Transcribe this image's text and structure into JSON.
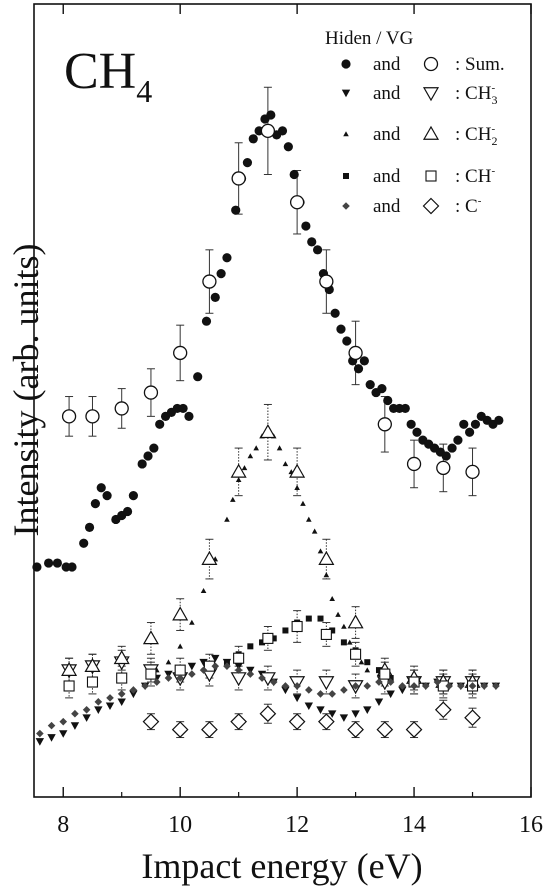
{
  "chart_data": {
    "type": "scatter",
    "title": "CH4",
    "title_main": "CH",
    "title_sub": "4",
    "xlabel": "Impact energy (eV)",
    "ylabel": "Intensity (arb. units)",
    "xlim": [
      7.5,
      16
    ],
    "ylim": [
      0,
      100
    ],
    "y_unit_note": "arbitrary units, no y tick labels",
    "x_ticks": [
      8,
      10,
      12,
      14,
      16
    ],
    "x_tick_labels": [
      "8",
      "10",
      "12",
      "14",
      "16"
    ],
    "legend": {
      "header": "Hiden / VG",
      "placement": "top-right",
      "entries": [
        {
          "and": "and",
          "label": ": Sum.",
          "ion": "Sum.",
          "sup": "",
          "sub": ""
        },
        {
          "and": "and",
          "label": ": CH3-",
          "ion": "CH",
          "sub": "3",
          "sup": "-"
        },
        {
          "and": "and",
          "label": ": CH2-",
          "ion": "CH",
          "sub": "2",
          "sup": "-"
        },
        {
          "and": "and",
          "label": ": CH-",
          "ion": "CH",
          "sub": "",
          "sup": "-"
        },
        {
          "and": "and",
          "label": ": C-",
          "ion": "C",
          "sub": "",
          "sup": "-"
        }
      ]
    },
    "series": [
      {
        "name": "Hiden Sum.",
        "marker": "filled-circle",
        "points": [
          [
            7.55,
            29
          ],
          [
            7.75,
            29.5
          ],
          [
            7.9,
            29.5
          ],
          [
            8.05,
            29
          ],
          [
            8.15,
            29
          ],
          [
            8.35,
            32
          ],
          [
            8.45,
            34
          ],
          [
            8.55,
            37
          ],
          [
            8.65,
            39
          ],
          [
            8.75,
            38
          ],
          [
            8.9,
            35
          ],
          [
            9.0,
            35.5
          ],
          [
            9.1,
            36
          ],
          [
            9.2,
            38
          ],
          [
            9.35,
            42
          ],
          [
            9.45,
            43
          ],
          [
            9.55,
            44
          ],
          [
            9.65,
            47
          ],
          [
            9.75,
            48
          ],
          [
            9.85,
            48.5
          ],
          [
            9.95,
            49
          ],
          [
            10.05,
            49
          ],
          [
            10.15,
            48
          ],
          [
            10.3,
            53
          ],
          [
            10.45,
            60
          ],
          [
            10.6,
            63
          ],
          [
            10.7,
            66
          ],
          [
            10.8,
            68
          ],
          [
            10.95,
            74
          ],
          [
            11.05,
            78
          ],
          [
            11.15,
            80
          ],
          [
            11.25,
            83
          ],
          [
            11.35,
            84
          ],
          [
            11.45,
            85.5
          ],
          [
            11.55,
            86
          ],
          [
            11.65,
            83.5
          ],
          [
            11.75,
            84
          ],
          [
            11.85,
            82
          ],
          [
            11.95,
            78.5
          ],
          [
            12.05,
            75
          ],
          [
            12.15,
            72
          ],
          [
            12.25,
            70
          ],
          [
            12.35,
            69
          ],
          [
            12.45,
            66
          ],
          [
            12.55,
            64
          ],
          [
            12.65,
            61
          ],
          [
            12.75,
            59
          ],
          [
            12.85,
            57.5
          ],
          [
            12.95,
            55
          ],
          [
            13.05,
            54
          ],
          [
            13.15,
            55
          ],
          [
            13.25,
            52
          ],
          [
            13.35,
            51
          ],
          [
            13.45,
            51.5
          ],
          [
            13.55,
            50
          ],
          [
            13.65,
            49
          ],
          [
            13.75,
            49
          ],
          [
            13.85,
            49
          ],
          [
            13.95,
            47
          ],
          [
            14.05,
            46
          ],
          [
            14.15,
            45
          ],
          [
            14.25,
            44.5
          ],
          [
            14.35,
            44
          ],
          [
            14.45,
            43.5
          ],
          [
            14.55,
            43
          ],
          [
            14.65,
            44
          ],
          [
            14.75,
            45
          ],
          [
            14.85,
            47
          ],
          [
            14.95,
            46
          ],
          [
            15.05,
            47
          ],
          [
            15.15,
            48
          ],
          [
            15.25,
            47.5
          ],
          [
            15.35,
            47
          ],
          [
            15.45,
            47.5
          ]
        ]
      },
      {
        "name": "VG Sum.",
        "marker": "open-circle",
        "points": [
          [
            8.1,
            48,
            2.5
          ],
          [
            8.5,
            48,
            2.5
          ],
          [
            9.0,
            49,
            2.5
          ],
          [
            9.5,
            51,
            3
          ],
          [
            10.0,
            56,
            3.5
          ],
          [
            10.5,
            65,
            4
          ],
          [
            11.0,
            78,
            4.5
          ],
          [
            11.5,
            84,
            5.5
          ],
          [
            12.0,
            75,
            4
          ],
          [
            12.5,
            65,
            4
          ],
          [
            13.0,
            56,
            4
          ],
          [
            13.5,
            47,
            3.5
          ],
          [
            14.0,
            42,
            3
          ],
          [
            14.5,
            41.5,
            3
          ],
          [
            15.0,
            41,
            3
          ]
        ]
      },
      {
        "name": "Hiden CH3-",
        "marker": "filled-triangle-down",
        "points": [
          [
            7.6,
            7
          ],
          [
            7.8,
            7.5
          ],
          [
            8.0,
            8
          ],
          [
            8.2,
            9
          ],
          [
            8.4,
            10
          ],
          [
            8.6,
            11
          ],
          [
            8.8,
            11.5
          ],
          [
            9.0,
            12
          ],
          [
            9.2,
            13
          ],
          [
            9.4,
            14
          ],
          [
            9.6,
            15
          ],
          [
            9.8,
            15.5
          ],
          [
            10.0,
            16
          ],
          [
            10.2,
            16.5
          ],
          [
            10.4,
            17
          ],
          [
            10.6,
            17.5
          ],
          [
            10.8,
            17
          ],
          [
            11.0,
            16.5
          ],
          [
            11.2,
            16
          ],
          [
            11.4,
            15.5
          ],
          [
            11.6,
            14.5
          ],
          [
            11.8,
            13.5
          ],
          [
            12.0,
            12.5
          ],
          [
            12.2,
            11.5
          ],
          [
            12.4,
            11
          ],
          [
            12.6,
            10.5
          ],
          [
            12.8,
            10
          ],
          [
            13.0,
            10.5
          ],
          [
            13.2,
            11
          ],
          [
            13.4,
            12
          ],
          [
            13.6,
            13
          ],
          [
            13.8,
            13.5
          ],
          [
            14.0,
            14
          ],
          [
            14.2,
            14
          ],
          [
            14.4,
            14.5
          ],
          [
            14.6,
            14
          ],
          [
            14.8,
            14
          ],
          [
            15.0,
            14
          ],
          [
            15.2,
            14
          ],
          [
            15.4,
            14
          ]
        ]
      },
      {
        "name": "VG CH3-",
        "marker": "open-triangle-down",
        "points": [
          [
            8.1,
            16,
            1.5
          ],
          [
            8.5,
            16.5,
            1.5
          ],
          [
            9.0,
            17,
            1.5
          ],
          [
            9.5,
            16,
            1.5
          ],
          [
            10.0,
            15,
            1.5
          ],
          [
            10.5,
            15.5,
            1.5
          ],
          [
            11.0,
            15,
            1.5
          ],
          [
            11.5,
            15,
            1.5
          ],
          [
            12.0,
            14.5,
            1.5
          ],
          [
            12.5,
            14.5,
            1.5
          ],
          [
            13.0,
            14,
            1.5
          ],
          [
            13.5,
            14.5,
            1.5
          ],
          [
            14.0,
            14.5,
            1.5
          ],
          [
            14.5,
            14.5,
            1.5
          ],
          [
            15.0,
            14.5,
            1.5
          ]
        ]
      },
      {
        "name": "Hiden CH2-",
        "marker": "small-filled-triangle",
        "points": [
          [
            9.6,
            16
          ],
          [
            9.8,
            17
          ],
          [
            10.0,
            19
          ],
          [
            10.2,
            22
          ],
          [
            10.4,
            26
          ],
          [
            10.6,
            30
          ],
          [
            10.8,
            35
          ],
          [
            10.9,
            37.5
          ],
          [
            11.0,
            40
          ],
          [
            11.1,
            41.5
          ],
          [
            11.2,
            43
          ],
          [
            11.3,
            44
          ],
          [
            11.4,
            45.5
          ],
          [
            11.5,
            46
          ],
          [
            11.6,
            45.5
          ],
          [
            11.7,
            44
          ],
          [
            11.8,
            42
          ],
          [
            11.9,
            41
          ],
          [
            12.0,
            39
          ],
          [
            12.1,
            37
          ],
          [
            12.2,
            35
          ],
          [
            12.3,
            33.5
          ],
          [
            12.4,
            31
          ],
          [
            12.5,
            28
          ],
          [
            12.6,
            25
          ],
          [
            12.7,
            23
          ],
          [
            12.8,
            21.5
          ],
          [
            12.9,
            19.5
          ],
          [
            13.0,
            18.5
          ],
          [
            13.1,
            17
          ],
          [
            13.2,
            16
          ]
        ]
      },
      {
        "name": "VG CH2-",
        "marker": "open-triangle-up",
        "points": [
          [
            8.1,
            16,
            1.5
          ],
          [
            8.5,
            16.5,
            1.5
          ],
          [
            9.0,
            17.5,
            1.5
          ],
          [
            9.5,
            20,
            2
          ],
          [
            10.0,
            23,
            2
          ],
          [
            10.5,
            30,
            2.5
          ],
          [
            11.0,
            41,
            3
          ],
          [
            11.5,
            46,
            3.5
          ],
          [
            12.0,
            41,
            3
          ],
          [
            12.5,
            30,
            2.5
          ],
          [
            13.0,
            22,
            2
          ],
          [
            13.5,
            16,
            1.5
          ],
          [
            14.0,
            15,
            1.5
          ],
          [
            14.5,
            14.5,
            1.5
          ],
          [
            15.0,
            14.5,
            1.5
          ]
        ]
      },
      {
        "name": "Hiden CH-",
        "marker": "filled-square",
        "points": [
          [
            10.8,
            17
          ],
          [
            11.0,
            18
          ],
          [
            11.2,
            19
          ],
          [
            11.4,
            19.5
          ],
          [
            11.6,
            20
          ],
          [
            11.8,
            21
          ],
          [
            12.0,
            22
          ],
          [
            12.2,
            22.5
          ],
          [
            12.4,
            22.5
          ],
          [
            12.6,
            21
          ],
          [
            12.8,
            19.5
          ],
          [
            13.0,
            18.5
          ],
          [
            13.2,
            17
          ],
          [
            13.4,
            16
          ],
          [
            13.6,
            15
          ]
        ]
      },
      {
        "name": "VG CH-",
        "marker": "open-square",
        "points": [
          [
            8.1,
            14,
            1.5
          ],
          [
            8.5,
            14.5,
            1.5
          ],
          [
            9.0,
            15,
            1.5
          ],
          [
            9.5,
            15.5,
            1.5
          ],
          [
            10.0,
            16,
            1.5
          ],
          [
            10.5,
            16.5,
            1.5
          ],
          [
            11.0,
            17.5,
            1.5
          ],
          [
            11.5,
            20,
            1.5
          ],
          [
            12.0,
            21.5,
            2
          ],
          [
            12.5,
            20.5,
            1.5
          ],
          [
            13.0,
            18,
            1.5
          ],
          [
            13.5,
            15.5,
            1.5
          ],
          [
            14.0,
            14.5,
            1.5
          ],
          [
            14.5,
            14,
            1.5
          ],
          [
            15.0,
            14,
            1.5
          ]
        ]
      },
      {
        "name": "Hiden C-",
        "marker": "filled-diamond",
        "points": [
          [
            7.6,
            8
          ],
          [
            7.8,
            9
          ],
          [
            8.0,
            9.5
          ],
          [
            8.2,
            10.5
          ],
          [
            8.4,
            11
          ],
          [
            8.6,
            12
          ],
          [
            8.8,
            12.5
          ],
          [
            9.0,
            13
          ],
          [
            9.2,
            13.5
          ],
          [
            9.4,
            14
          ],
          [
            9.6,
            14.5
          ],
          [
            9.8,
            15
          ],
          [
            10.0,
            15
          ],
          [
            10.2,
            15.5
          ],
          [
            10.4,
            16
          ],
          [
            10.6,
            16.5
          ],
          [
            10.8,
            16.5
          ],
          [
            11.0,
            16
          ],
          [
            11.2,
            15.5
          ],
          [
            11.4,
            15
          ],
          [
            11.6,
            14.5
          ],
          [
            11.8,
            14
          ],
          [
            12.0,
            14
          ],
          [
            12.2,
            13.5
          ],
          [
            12.4,
            13
          ],
          [
            12.6,
            13
          ],
          [
            12.8,
            13.5
          ],
          [
            13.0,
            14
          ],
          [
            13.2,
            14
          ],
          [
            13.4,
            14.5
          ],
          [
            13.6,
            14.5
          ],
          [
            13.8,
            14
          ],
          [
            14.0,
            14
          ],
          [
            14.2,
            14
          ],
          [
            14.4,
            14.5
          ],
          [
            14.6,
            14
          ],
          [
            14.8,
            14
          ],
          [
            15.0,
            14
          ],
          [
            15.2,
            14
          ],
          [
            15.4,
            14
          ]
        ]
      },
      {
        "name": "VG C-",
        "marker": "open-diamond",
        "points": [
          [
            9.5,
            9.5,
            1
          ],
          [
            10.0,
            8.5,
            1
          ],
          [
            10.5,
            8.5,
            1
          ],
          [
            11.0,
            9.5,
            1
          ],
          [
            11.5,
            10.5,
            1.2
          ],
          [
            12.0,
            9.5,
            1
          ],
          [
            12.5,
            9.5,
            1
          ],
          [
            13.0,
            8.5,
            1
          ],
          [
            13.5,
            8.5,
            1
          ],
          [
            14.0,
            8.5,
            1
          ],
          [
            14.5,
            11,
            1.2
          ],
          [
            15.0,
            10,
            1.2
          ]
        ]
      }
    ]
  }
}
